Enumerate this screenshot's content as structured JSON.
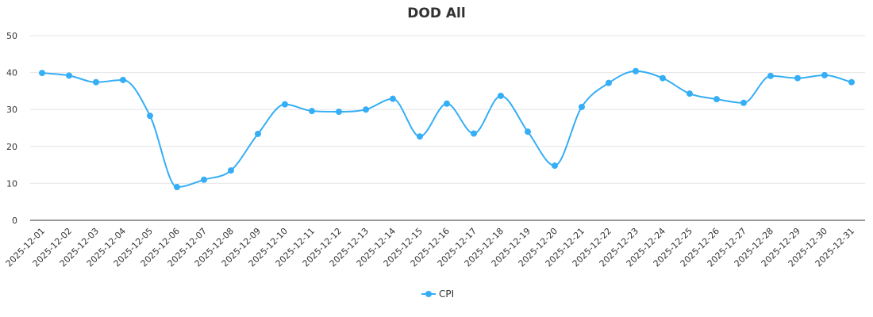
{
  "chart_data": {
    "type": "line",
    "title": "DOD All",
    "xlabel": "",
    "ylabel": "",
    "ylim": [
      0,
      50
    ],
    "yticks": [
      0,
      10,
      20,
      30,
      40,
      50
    ],
    "grid": true,
    "legend_position": "bottom-center",
    "categories": [
      "2025-12-01",
      "2025-12-02",
      "2025-12-03",
      "2025-12-04",
      "2025-12-05",
      "2025-12-06",
      "2025-12-07",
      "2025-12-08",
      "2025-12-09",
      "2025-12-10",
      "2025-12-11",
      "2025-12-12",
      "2025-12-13",
      "2025-12-14",
      "2025-12-15",
      "2025-12-16",
      "2025-12-17",
      "2025-12-18",
      "2025-12-19",
      "2025-12-20",
      "2025-12-21",
      "2025-12-22",
      "2025-12-23",
      "2025-12-24",
      "2025-12-25",
      "2025-12-26",
      "2025-12-27",
      "2025-12-28",
      "2025-12-29",
      "2025-12-30",
      "2025-12-31"
    ],
    "series": [
      {
        "name": "CPI",
        "color": "#35aef6",
        "values": [
          39.9,
          39.2,
          37.4,
          38.0,
          28.3,
          9.0,
          11.0,
          13.5,
          23.4,
          31.4,
          29.6,
          29.4,
          30.0,
          32.9,
          22.7,
          31.6,
          23.5,
          33.7,
          24.0,
          14.8,
          30.7,
          37.2,
          40.4,
          38.5,
          34.3,
          32.8,
          31.8,
          39.1,
          38.5,
          39.3,
          37.4
        ]
      }
    ]
  }
}
